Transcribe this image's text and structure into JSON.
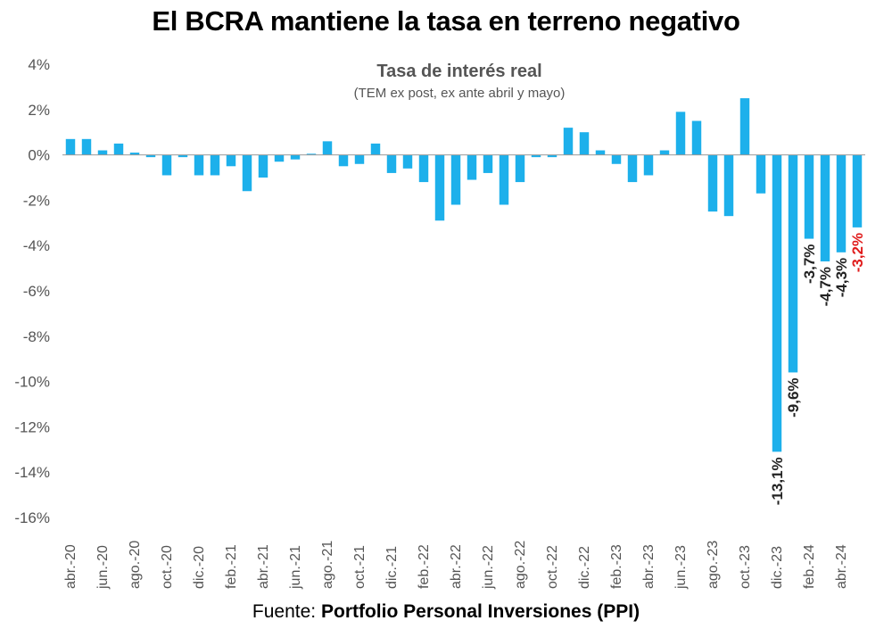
{
  "title": "El BCRA mantiene la tasa en terreno negativo",
  "source": {
    "prefix": "Fuente: ",
    "name": "Portfolio Personal Inversiones (PPI)"
  },
  "colors": {
    "bar": "#1DB0EB",
    "label_default": "#222222",
    "label_highlight": "#E01B1B",
    "axis": "#999999",
    "tick_text": "#555555"
  },
  "chart_data": {
    "type": "bar",
    "title": "Tasa de interés real",
    "subtitle": "(TEM ex post, ex ante abril y mayo)",
    "ylim": [
      -16,
      4
    ],
    "y_ticks": [
      4,
      2,
      0,
      -2,
      -4,
      -6,
      -8,
      -10,
      -12,
      -14,
      -16
    ],
    "y_tick_labels": [
      "4%",
      "2%",
      "0%",
      "-2%",
      "-4%",
      "-6%",
      "-8%",
      "-10%",
      "-12%",
      "-14%",
      "-16%"
    ],
    "grid": false,
    "legend": "none",
    "categories": [
      "abr.-20",
      "may.-20",
      "jun.-20",
      "jul.-20",
      "ago.-20",
      "sep.-20",
      "oct.-20",
      "nov.-20",
      "dic.-20",
      "ene.-21",
      "feb.-21",
      "mar.-21",
      "abr.-21",
      "may.-21",
      "jun.-21",
      "jul.-21",
      "ago.-21",
      "sep.-21",
      "oct.-21",
      "nov.-21",
      "dic.-21",
      "ene.-22",
      "feb.-22",
      "mar.-22",
      "abr.-22",
      "may.-22",
      "jun.-22",
      "jul.-22",
      "ago.-22",
      "sep.-22",
      "oct.-22",
      "nov.-22",
      "dic.-22",
      "ene.-23",
      "feb.-23",
      "mar.-23",
      "abr.-23",
      "may.-23",
      "jun.-23",
      "jul.-23",
      "ago.-23",
      "sep.-23",
      "oct.-23",
      "nov.-23",
      "dic.-23",
      "ene.-24",
      "feb.-24",
      "mar.-24",
      "abr.-24",
      "may.-24"
    ],
    "x_tick_labels": [
      "abr.-20",
      "",
      "jun.-20",
      "",
      "ago.-20",
      "",
      "oct.-20",
      "",
      "dic.-20",
      "",
      "feb.-21",
      "",
      "abr.-21",
      "",
      "jun.-21",
      "",
      "ago.-21",
      "",
      "oct.-21",
      "",
      "dic.-21",
      "",
      "feb.-22",
      "",
      "abr.-22",
      "",
      "jun.-22",
      "",
      "ago.-22",
      "",
      "oct.-22",
      "",
      "dic.-22",
      "",
      "feb.-23",
      "",
      "abr.-23",
      "",
      "jun.-23",
      "",
      "ago.-23",
      "",
      "oct.-23",
      "",
      "dic.-23",
      "",
      "feb.-24",
      "",
      "abr.-24",
      ""
    ],
    "values": [
      0.7,
      0.7,
      0.2,
      0.5,
      0.1,
      -0.1,
      -0.9,
      -0.1,
      -0.9,
      -0.9,
      -0.5,
      -1.6,
      -1.0,
      -0.3,
      -0.2,
      0.05,
      0.6,
      -0.5,
      -0.4,
      0.5,
      -0.8,
      -0.6,
      -1.2,
      -2.9,
      -2.2,
      -1.1,
      -0.8,
      -2.2,
      -1.2,
      -0.1,
      -0.1,
      1.2,
      1.0,
      0.2,
      -0.4,
      -1.2,
      -0.9,
      0.2,
      1.9,
      1.5,
      -2.5,
      -2.7,
      2.5,
      -1.7,
      -13.1,
      -9.6,
      -3.7,
      -4.7,
      -4.3,
      -3.2
    ],
    "data_labels": [
      {
        "index": 44,
        "text": "-13,1%",
        "highlight": false
      },
      {
        "index": 45,
        "text": "-9,6%",
        "highlight": false
      },
      {
        "index": 46,
        "text": "-3,7%",
        "highlight": false
      },
      {
        "index": 47,
        "text": "-4,7%",
        "highlight": false
      },
      {
        "index": 48,
        "text": "-4,3%",
        "highlight": false
      },
      {
        "index": 49,
        "text": "-3,2%",
        "highlight": true
      }
    ]
  }
}
